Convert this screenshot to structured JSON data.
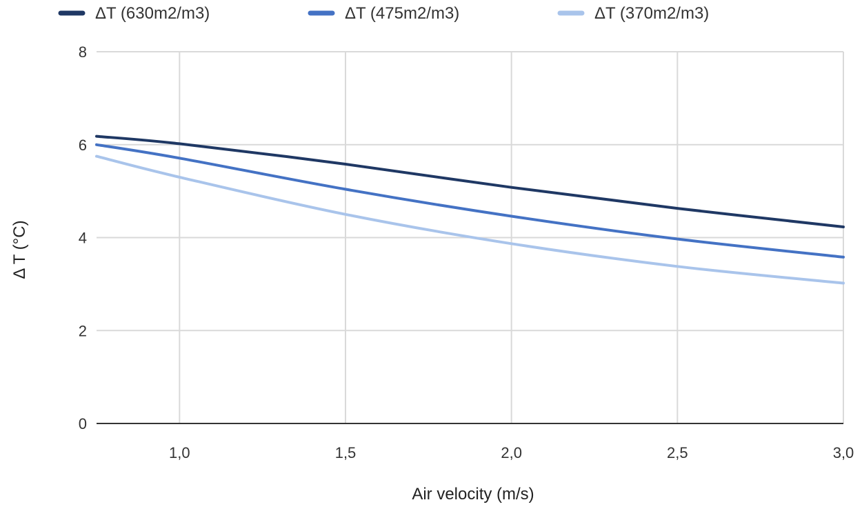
{
  "chart_data": {
    "type": "line",
    "title": "",
    "xlabel": "Air velocity (m/s)",
    "ylabel": "Δ T (°C)",
    "xlim": [
      0.75,
      3.0
    ],
    "ylim": [
      0,
      8
    ],
    "x_ticks": [
      {
        "value": 1.0,
        "label": "1,0"
      },
      {
        "value": 1.5,
        "label": "1,5"
      },
      {
        "value": 2.0,
        "label": "2,0"
      },
      {
        "value": 2.5,
        "label": "2,5"
      },
      {
        "value": 3.0,
        "label": "3,0"
      }
    ],
    "y_ticks": [
      {
        "value": 0,
        "label": "0"
      },
      {
        "value": 2,
        "label": "2"
      },
      {
        "value": 4,
        "label": "4"
      },
      {
        "value": 6,
        "label": "6"
      },
      {
        "value": 8,
        "label": "8"
      }
    ],
    "grid": true,
    "legend_position": "top",
    "x": [
      0.75,
      1.0,
      1.5,
      2.0,
      2.5,
      3.0
    ],
    "series": [
      {
        "name": "ΔT (630m2/m3)",
        "color": "#1f3864",
        "values": [
          6.18,
          6.02,
          5.58,
          5.08,
          4.63,
          4.23
        ]
      },
      {
        "name": "ΔT (475m2/m3)",
        "color": "#4472c4",
        "values": [
          6.0,
          5.71,
          5.04,
          4.46,
          3.97,
          3.58
        ]
      },
      {
        "name": "ΔT (370m2/m3)",
        "color": "#a9c4eb",
        "values": [
          5.75,
          5.3,
          4.5,
          3.87,
          3.38,
          3.02
        ]
      }
    ]
  }
}
